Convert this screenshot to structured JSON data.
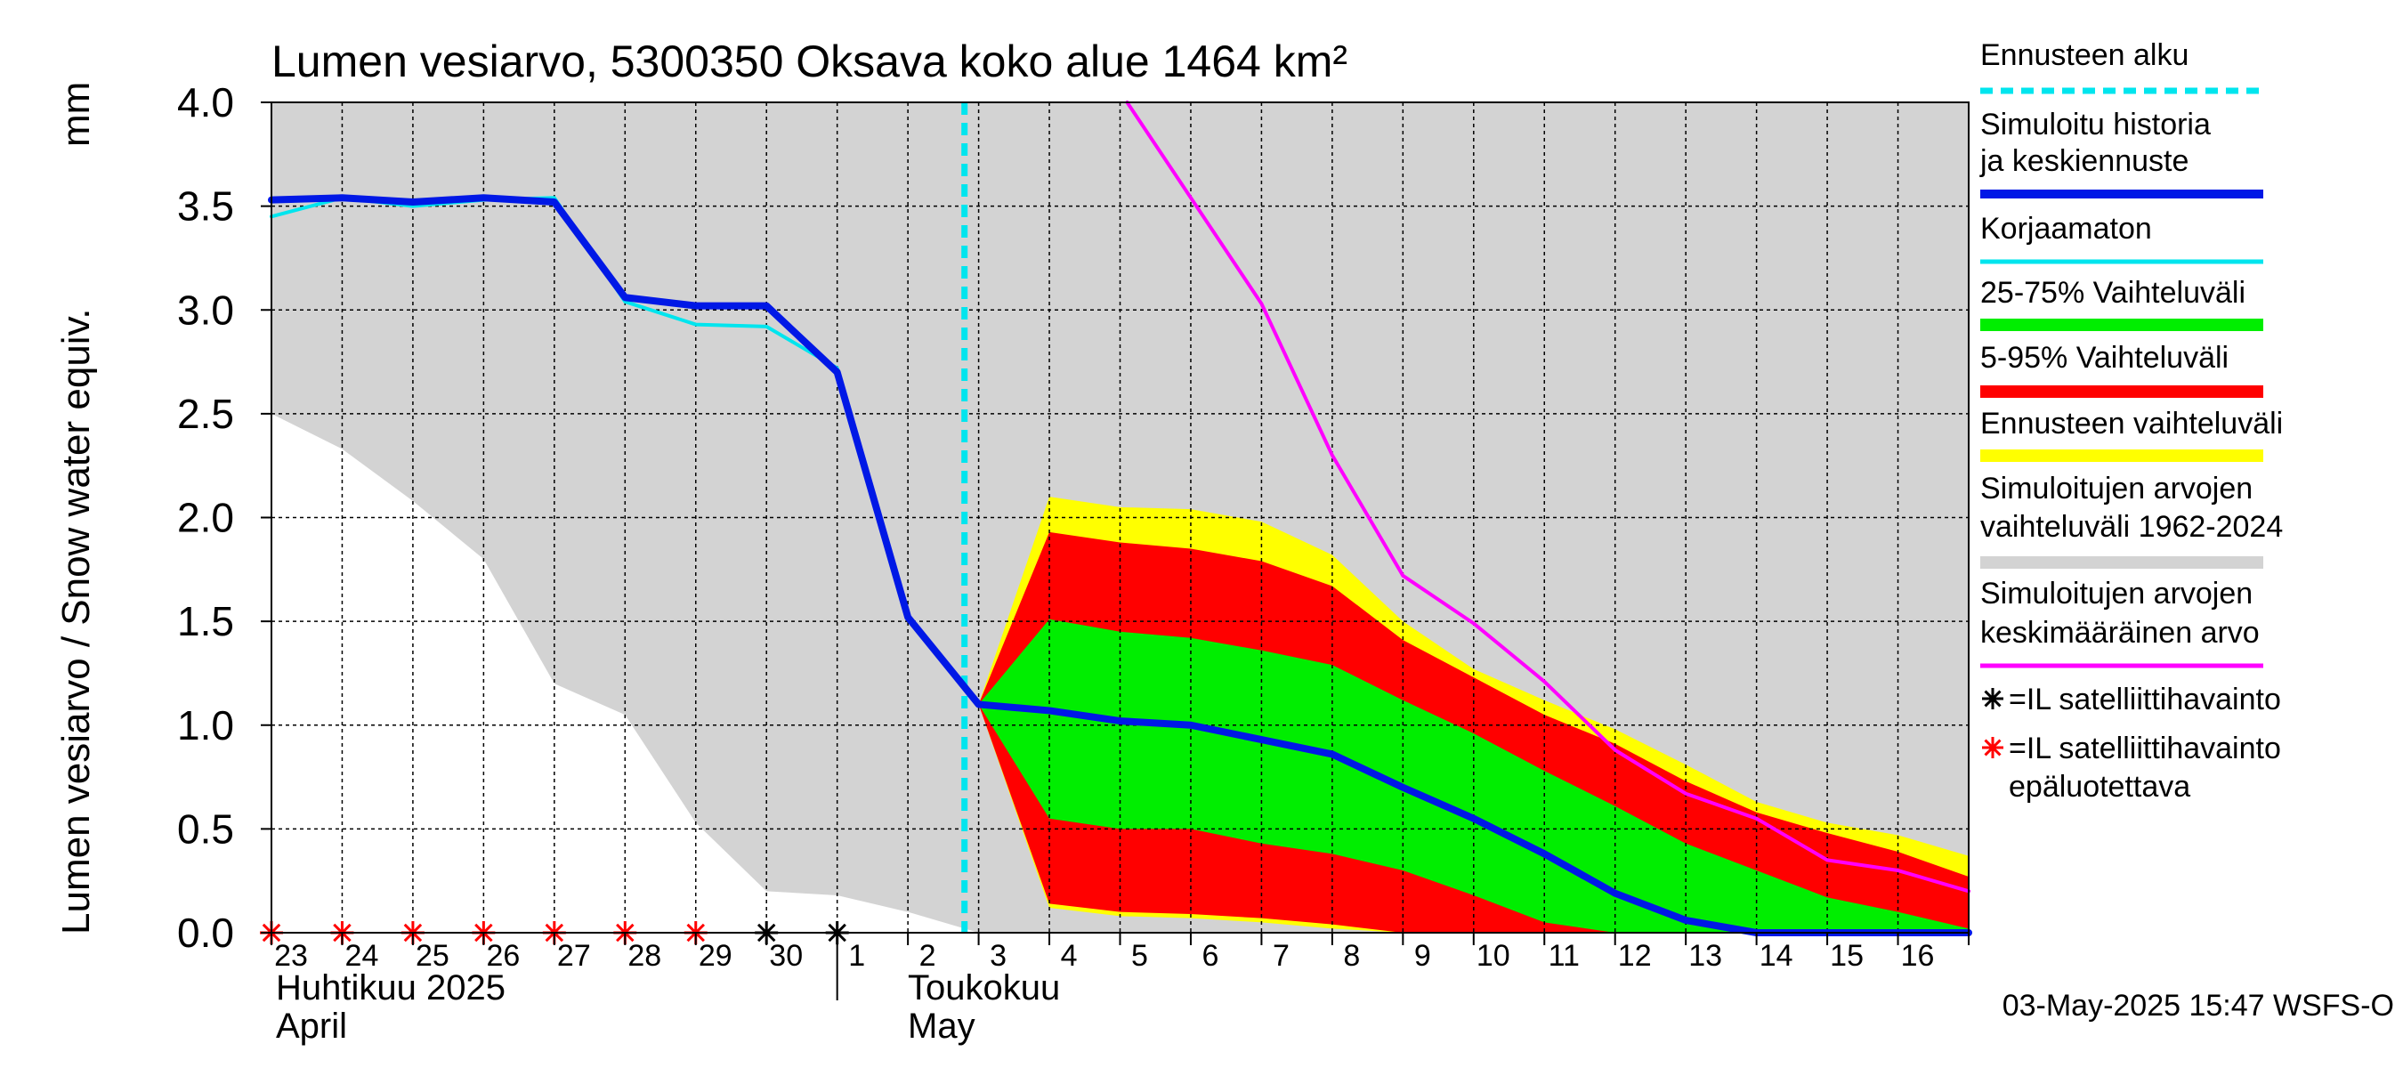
{
  "chart_data": {
    "type": "area",
    "title": "Lumen vesiarvo, 5300350 Oksava koko alue 1464 km²",
    "ylabel": "Lumen vesiarvo / Snow water equiv.",
    "yunit": "mm",
    "ylim": [
      0,
      4.0
    ],
    "yticks": [
      "0.0",
      "0.5",
      "1.0",
      "1.5",
      "2.0",
      "2.5",
      "3.0",
      "3.5",
      "4.0"
    ],
    "grid": true,
    "legend_position": "right",
    "x_days": [
      "23",
      "24",
      "25",
      "26",
      "27",
      "28",
      "29",
      "30",
      "1",
      "2",
      "3",
      "4",
      "5",
      "6",
      "7",
      "8",
      "9",
      "10",
      "11",
      "12",
      "13",
      "14",
      "15",
      "16"
    ],
    "month_labels": [
      {
        "text": "Huhtikuu  2025",
        "sub": "April"
      },
      {
        "text": "Toukokuu",
        "sub": "May"
      }
    ],
    "forecast_start_day": 9.8,
    "series": [
      {
        "name": "Simuloitujen arvojen vaihteluväli 1962-2024",
        "color": "#d3d3d3",
        "kind": "band",
        "x": [
          0,
          1,
          2,
          3,
          4,
          5,
          6,
          7,
          8,
          9,
          10,
          11,
          12,
          13,
          14,
          15,
          16,
          17,
          18,
          19,
          20,
          21,
          22,
          23,
          24
        ],
        "upper": [
          4.0,
          4.0,
          4.0,
          4.0,
          4.0,
          4.0,
          4.0,
          4.0,
          4.0,
          4.0,
          4.0,
          4.0,
          4.0,
          4.0,
          4.0,
          4.0,
          4.0,
          4.0,
          4.0,
          4.0,
          4.0,
          4.0,
          4.0,
          4.0,
          4.0
        ],
        "lower": [
          2.5,
          2.33,
          2.08,
          1.8,
          1.2,
          1.05,
          0.53,
          0.2,
          0.18,
          0.1,
          0.0,
          0.0,
          0.0,
          0.0,
          0.0,
          0.0,
          0.0,
          0.0,
          0.0,
          0.0,
          0.0,
          0.0,
          0.0,
          0.0,
          0.0
        ]
      },
      {
        "name": "Ennusteen vaihteluväli",
        "color": "#ffff00",
        "kind": "band",
        "x": [
          10,
          11,
          12,
          13,
          14,
          15,
          16,
          17,
          18,
          19,
          20,
          21,
          22,
          23,
          24
        ],
        "upper": [
          1.1,
          2.1,
          2.05,
          2.04,
          1.98,
          1.82,
          1.5,
          1.27,
          1.12,
          0.98,
          0.81,
          0.63,
          0.53,
          0.47,
          0.37
        ],
        "lower": [
          1.1,
          0.12,
          0.08,
          0.07,
          0.05,
          0.02,
          0.0,
          0.0,
          0.0,
          0.0,
          0.0,
          0.0,
          0.0,
          0.0,
          0.0
        ]
      },
      {
        "name": "5-95% Vaihteluväli",
        "color": "#ff0000",
        "kind": "band",
        "x": [
          10,
          11,
          12,
          13,
          14,
          15,
          16,
          17,
          18,
          19,
          20,
          21,
          22,
          23,
          24
        ],
        "upper": [
          1.1,
          1.93,
          1.88,
          1.85,
          1.79,
          1.67,
          1.41,
          1.23,
          1.05,
          0.91,
          0.73,
          0.58,
          0.48,
          0.39,
          0.27
        ],
        "lower": [
          1.1,
          0.14,
          0.1,
          0.09,
          0.07,
          0.04,
          0.0,
          0.0,
          0.0,
          0.0,
          0.0,
          0.0,
          0.0,
          0.0,
          0.0
        ]
      },
      {
        "name": "25-75% Vaihteluväli",
        "color": "#00ee00",
        "kind": "band",
        "x": [
          10,
          11,
          12,
          13,
          14,
          15,
          16,
          17,
          18,
          19,
          20,
          21,
          22,
          23,
          24
        ],
        "upper": [
          1.1,
          1.51,
          1.45,
          1.42,
          1.36,
          1.29,
          1.12,
          0.96,
          0.78,
          0.61,
          0.43,
          0.3,
          0.17,
          0.1,
          0.02
        ],
        "lower": [
          1.1,
          0.55,
          0.5,
          0.5,
          0.43,
          0.38,
          0.3,
          0.18,
          0.05,
          0.0,
          0.0,
          0.0,
          0.0,
          0.0,
          0.0
        ]
      },
      {
        "name": "Simuloitujen arvojen keskimääräinen arvo",
        "color": "#ff00ff",
        "kind": "line",
        "width": 4,
        "x": [
          12.1,
          14,
          15,
          16,
          17,
          18,
          19,
          20,
          21,
          22,
          23,
          24
        ],
        "y": [
          4.0,
          3.03,
          2.3,
          1.72,
          1.49,
          1.21,
          0.88,
          0.67,
          0.55,
          0.35,
          0.3,
          0.2
        ]
      },
      {
        "name": "Korjaamaton",
        "color": "#00e5ee",
        "kind": "line",
        "width": 4,
        "x": [
          0,
          1,
          2,
          3,
          4,
          5,
          6,
          7,
          8,
          9,
          10
        ],
        "y": [
          3.45,
          3.54,
          3.5,
          3.53,
          3.54,
          3.04,
          2.93,
          2.92,
          2.72,
          1.52,
          1.1
        ]
      },
      {
        "name": "Simuloitu historia ja keskiennuste",
        "color": "#0018e6",
        "kind": "line",
        "width": 8,
        "x": [
          0,
          1,
          2,
          3,
          4,
          5,
          6,
          7,
          8,
          9,
          10,
          11,
          12,
          13,
          14,
          15,
          16,
          17,
          18,
          19,
          20,
          21,
          22,
          23,
          24
        ],
        "y": [
          3.53,
          3.54,
          3.52,
          3.54,
          3.52,
          3.06,
          3.02,
          3.02,
          2.7,
          1.52,
          1.1,
          1.07,
          1.02,
          1.0,
          0.93,
          0.86,
          0.7,
          0.55,
          0.38,
          0.19,
          0.06,
          0.0,
          0.0,
          0.0,
          0.0
        ]
      }
    ],
    "observations": [
      {
        "x": 0,
        "reliable": false
      },
      {
        "x": 1,
        "reliable": false
      },
      {
        "x": 2,
        "reliable": false
      },
      {
        "x": 3,
        "reliable": false
      },
      {
        "x": 4,
        "reliable": false
      },
      {
        "x": 5,
        "reliable": false
      },
      {
        "x": 6,
        "reliable": false
      },
      {
        "x": 7,
        "reliable": true
      },
      {
        "x": 8,
        "reliable": true
      }
    ],
    "legend": [
      {
        "label": "Ennusteen alku",
        "color": "#00e5ee",
        "style": "dashed"
      },
      {
        "label": "Simuloitu historia ja keskiennuste",
        "color": "#0018e6",
        "style": "thick"
      },
      {
        "label": "Korjaamaton",
        "color": "#00e5ee",
        "style": "line"
      },
      {
        "label": "25-75% Vaihteluväli",
        "color": "#00ee00",
        "style": "band"
      },
      {
        "label": "5-95% Vaihteluväli",
        "color": "#ff0000",
        "style": "band"
      },
      {
        "label": "Ennusteen vaihteluväli",
        "color": "#ffff00",
        "style": "band"
      },
      {
        "label": "Simuloitujen arvojen vaihteluväli 1962-2024",
        "color": "#d3d3d3",
        "style": "band"
      },
      {
        "label": "Simuloitujen arvojen keskimääräinen arvo",
        "color": "#ff00ff",
        "style": "line"
      },
      {
        "label": "=IL satelliittihavainto",
        "color": "#000000",
        "style": "star"
      },
      {
        "label": "=IL satelliittihavainto epäluotettava",
        "color": "#ff0000",
        "style": "star"
      }
    ],
    "timestamp": "03-May-2025 15:47 WSFS-O"
  }
}
